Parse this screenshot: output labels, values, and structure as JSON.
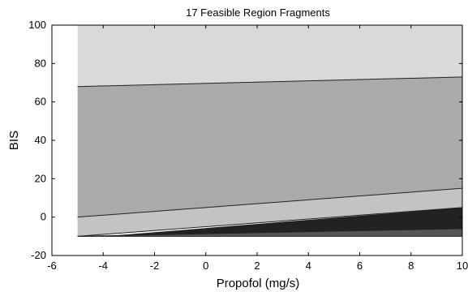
{
  "chart_data": {
    "type": "area",
    "title": "17 Feasible Region Fragments",
    "xlabel": "Propofol (mg/s)",
    "ylabel": "BIS",
    "xlim": [
      -6,
      10
    ],
    "ylim": [
      -20,
      100
    ],
    "x_ticks": [
      -6,
      -4,
      -2,
      0,
      2,
      4,
      6,
      8,
      10
    ],
    "y_ticks": [
      -20,
      0,
      20,
      40,
      60,
      80,
      100
    ],
    "grid": false,
    "regions": [
      {
        "fill": "#d9d9d9",
        "polygon": [
          [
            -5,
            100
          ],
          [
            10,
            100
          ],
          [
            10,
            73
          ],
          [
            -5,
            68
          ]
        ]
      },
      {
        "fill": "#aaaaaa",
        "polygon": [
          [
            -5,
            68
          ],
          [
            10,
            73
          ],
          [
            10,
            15
          ],
          [
            -5,
            0
          ]
        ]
      },
      {
        "fill": "#c3c3c3",
        "polygon": [
          [
            -5,
            0
          ],
          [
            10,
            15
          ],
          [
            10,
            5
          ],
          [
            -5,
            -10
          ]
        ]
      },
      {
        "fill": "#222222",
        "polygon": [
          [
            -4,
            -10
          ],
          [
            10,
            5
          ],
          [
            10,
            -6
          ],
          [
            -5,
            -10
          ]
        ]
      },
      {
        "fill": "#555555",
        "polygon": [
          [
            -5,
            -10
          ],
          [
            10,
            -6
          ],
          [
            10,
            -10
          ]
        ]
      }
    ],
    "boundaries": [
      {
        "points": [
          [
            -5,
            68
          ],
          [
            10,
            73
          ]
        ]
      },
      {
        "points": [
          [
            -5,
            0
          ],
          [
            10,
            15
          ]
        ]
      },
      {
        "points": [
          [
            -5,
            -10
          ],
          [
            10,
            5
          ]
        ]
      },
      {
        "points": [
          [
            -5,
            -10
          ],
          [
            10,
            -6
          ]
        ]
      },
      {
        "points": [
          [
            -5,
            -10
          ],
          [
            10,
            -10
          ]
        ]
      }
    ]
  }
}
